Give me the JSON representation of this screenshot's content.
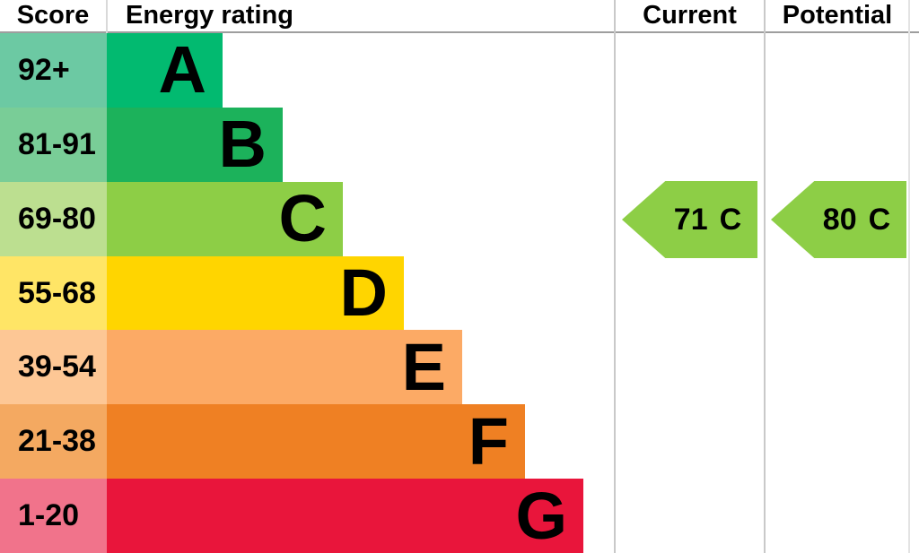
{
  "header": {
    "score": "Score",
    "energy_rating": "Energy rating",
    "current": "Current",
    "potential": "Potential"
  },
  "chart_data": {
    "type": "bar",
    "variant": "epc-energy-rating-chart",
    "orientation": "horizontal",
    "bands": [
      {
        "letter": "A",
        "score_range": "92+",
        "color": "#02ba70",
        "tint": "#6cc9a3"
      },
      {
        "letter": "B",
        "score_range": "81-91",
        "color": "#1cb25b",
        "tint": "#79cd97"
      },
      {
        "letter": "C",
        "score_range": "69-80",
        "color": "#8dce46",
        "tint": "#bcdf90"
      },
      {
        "letter": "D",
        "score_range": "55-68",
        "color": "#ffd500",
        "tint": "#ffe566"
      },
      {
        "letter": "E",
        "score_range": "39-54",
        "color": "#fcaa65",
        "tint": "#fdc795"
      },
      {
        "letter": "F",
        "score_range": "21-38",
        "color": "#ef8023",
        "tint": "#f4a961"
      },
      {
        "letter": "G",
        "score_range": "1-20",
        "color": "#e9153b",
        "tint": "#f1738b"
      }
    ],
    "current": {
      "value": "71",
      "band": "C",
      "color": "#8dce46"
    },
    "potential": {
      "value": "80",
      "band": "C",
      "color": "#8dce46"
    }
  }
}
